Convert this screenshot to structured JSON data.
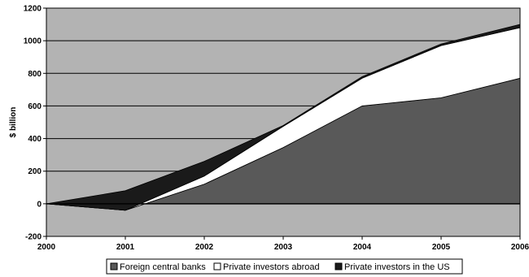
{
  "chart_data": {
    "type": "area",
    "x": [
      "2000",
      "2001",
      "2002",
      "2003",
      "2004",
      "2005",
      "2006"
    ],
    "xlabel": "",
    "ylabel": "$ billion",
    "ylim": [
      -200,
      1200
    ],
    "yticks": [
      -200,
      0,
      200,
      400,
      600,
      800,
      1000,
      1200
    ],
    "grid": true,
    "legend_position": "bottom",
    "series": [
      {
        "name": "Foreign central banks",
        "color": "#595959",
        "values": [
          0,
          -40,
          120,
          345,
          600,
          650,
          770
        ]
      },
      {
        "name": "Private investors abroad",
        "color": "#ffffff",
        "values": [
          0,
          0,
          50,
          130,
          170,
          320,
          310
        ]
      },
      {
        "name": "Private investors in the US",
        "color": "#1a1a1a",
        "values": [
          0,
          120,
          90,
          5,
          10,
          10,
          20
        ]
      }
    ],
    "plot_background": "#b3b3b3"
  }
}
